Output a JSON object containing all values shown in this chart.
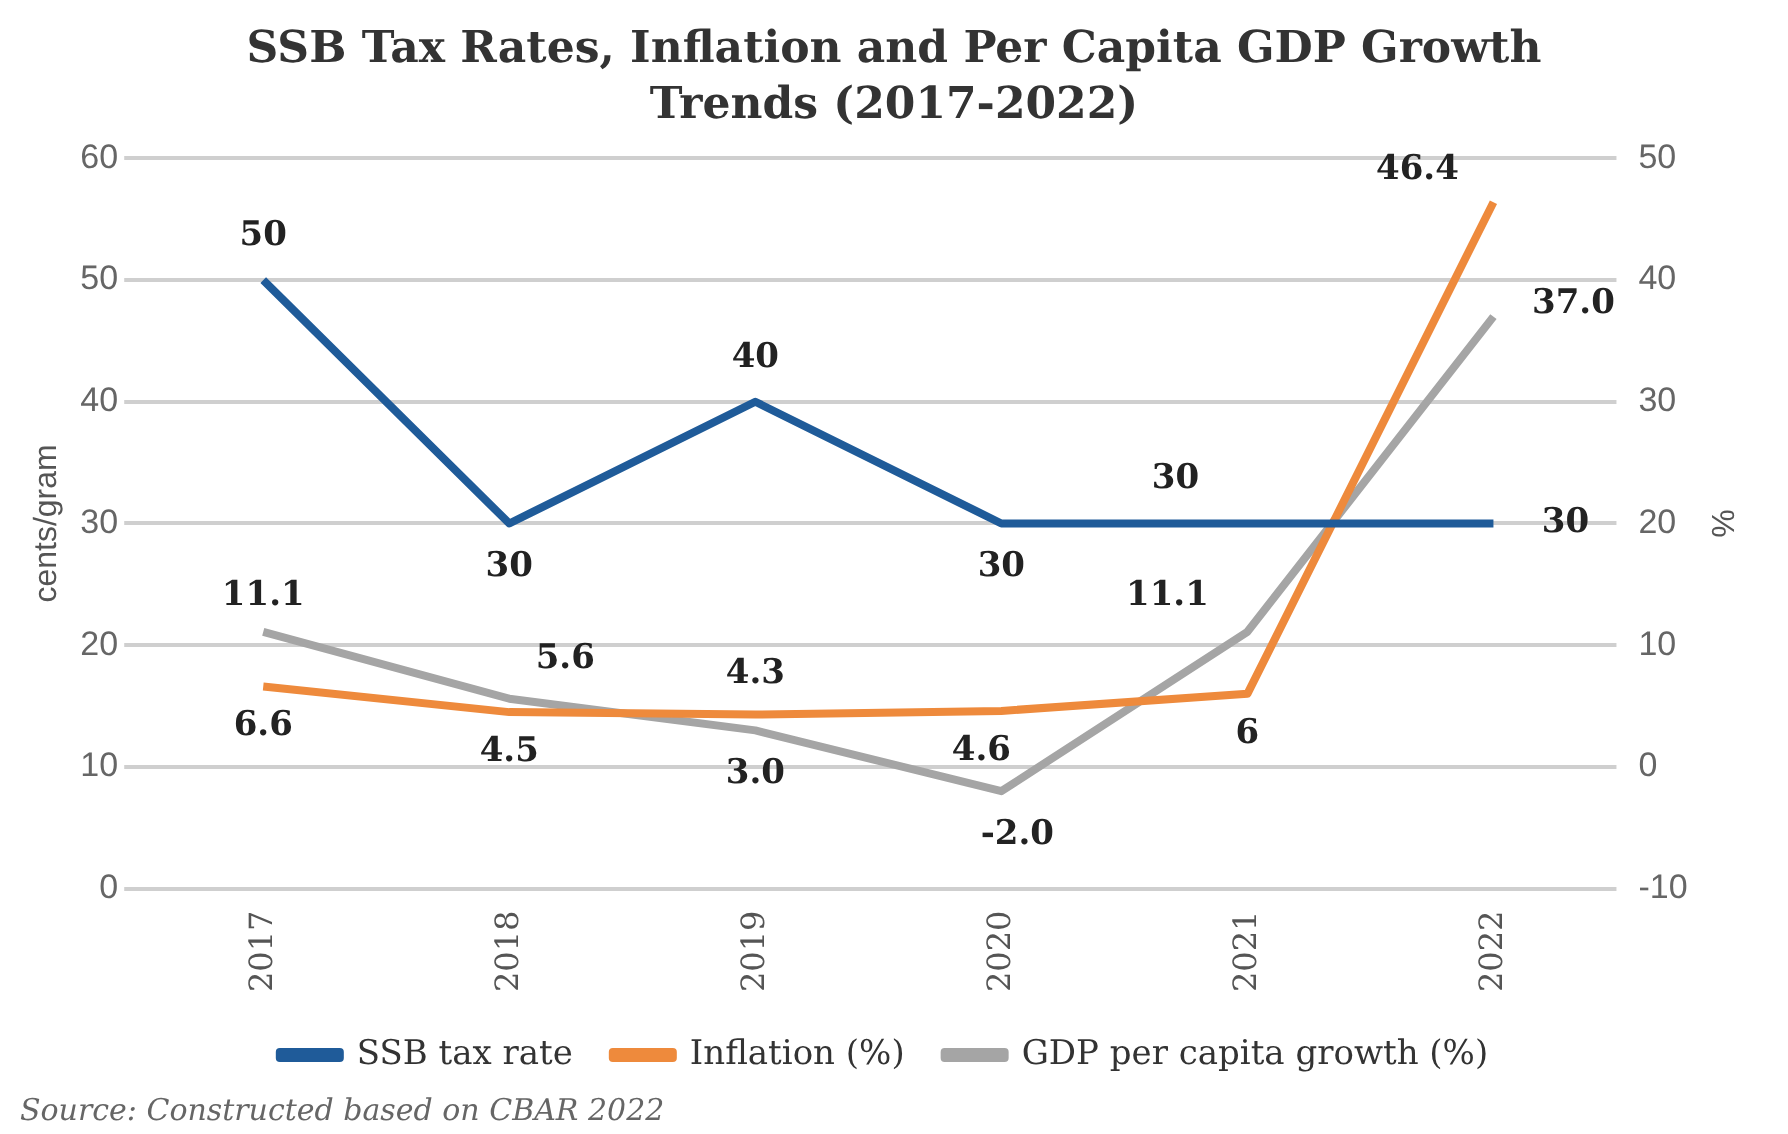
{
  "chart_data": {
    "type": "line",
    "title": "SSB Tax Rates, Inflation and Per Capita GDP Growth Trends (2017-2022)",
    "categories": [
      "2017",
      "2018",
      "2019",
      "2020",
      "2021",
      "2022"
    ],
    "series": [
      {
        "name": "SSB tax rate",
        "color": "#1f5b99",
        "values": [
          50,
          30,
          40,
          30,
          30,
          30
        ],
        "value_labels": [
          "50",
          "30",
          "40",
          "30",
          "30",
          "30"
        ]
      },
      {
        "name": "Inflation (%)",
        "color": "#ee8a3c",
        "axis": "y2",
        "values": [
          6.6,
          4.5,
          4.3,
          4.6,
          6,
          46.4
        ],
        "value_labels": [
          "6.6",
          "4.5",
          "4.3",
          "4.6",
          "6",
          "46.4"
        ]
      },
      {
        "name": "GDP per capita growth (%)",
        "color": "#a5a5a5",
        "axis": "y2",
        "values": [
          11.1,
          5.6,
          3.0,
          -2.0,
          11.1,
          37.0
        ],
        "value_labels": [
          "11.1",
          "5.6",
          "3.0",
          "-2.0",
          "11.1",
          "37.0"
        ]
      }
    ],
    "ylabel": "cents/gram",
    "y2label": "%",
    "ylim": [
      0,
      60
    ],
    "yticks": [
      0,
      10,
      20,
      30,
      40,
      50,
      60
    ],
    "y2lim": [
      -10,
      50
    ],
    "y2ticks": [
      -10,
      0,
      10,
      20,
      30,
      40,
      50
    ],
    "grid": "y",
    "legend": "bottom",
    "marker": "none",
    "annotations": [
      "Source: Constructed based on CBAR 2022"
    ]
  }
}
